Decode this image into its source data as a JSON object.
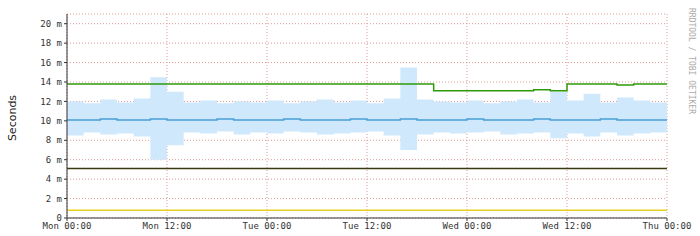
{
  "chart_data": {
    "type": "line",
    "y_label": "Seconds",
    "watermark": "RRDTOOL / TOBI OETIKER",
    "grid": true,
    "x": [
      0,
      2,
      4,
      6,
      8,
      10,
      12,
      14,
      16,
      18,
      20,
      22,
      24,
      26,
      28,
      30,
      32,
      34,
      36,
      38,
      40,
      42,
      44,
      46,
      48,
      50,
      52,
      54,
      56,
      58,
      60,
      62,
      64,
      66,
      68,
      70,
      72
    ],
    "xlim": [
      0,
      72
    ],
    "xticks": [
      {
        "value": 0,
        "label": "Mon 00:00"
      },
      {
        "value": 12,
        "label": "Mon 12:00"
      },
      {
        "value": 24,
        "label": "Tue 00:00"
      },
      {
        "value": 36,
        "label": "Tue 12:00"
      },
      {
        "value": 48,
        "label": "Wed 00:00"
      },
      {
        "value": 60,
        "label": "Wed 12:00"
      },
      {
        "value": 72,
        "label": "Thu 00:00"
      }
    ],
    "ylim": [
      0,
      0.021
    ],
    "yticks": [
      0,
      {
        "value": 0.002,
        "label": "2 m"
      },
      {
        "value": 0.004,
        "label": "4 m"
      },
      {
        "value": 0.006,
        "label": "6 m"
      },
      {
        "value": 0.008,
        "label": "8 m"
      },
      {
        "value": 0.01,
        "label": "10 m"
      },
      {
        "value": 0.012,
        "label": "12 m"
      },
      {
        "value": 0.014,
        "label": "14 m"
      },
      {
        "value": 0.016,
        "label": "16 m"
      },
      {
        "value": 0.018,
        "label": "18 m"
      },
      {
        "value": 0.02,
        "label": "20 m"
      }
    ],
    "series": [
      {
        "type": "range",
        "color": "#cfe8fb",
        "values": [
          [
            0.0085,
            0.012
          ],
          [
            0.0088,
            0.0118
          ],
          [
            0.0086,
            0.0122
          ],
          [
            0.0087,
            0.0119
          ],
          [
            0.0084,
            0.0123
          ],
          [
            0.006,
            0.0145
          ],
          [
            0.0075,
            0.013
          ],
          [
            0.0088,
            0.0119
          ],
          [
            0.0087,
            0.0121
          ],
          [
            0.0089,
            0.0118
          ],
          [
            0.0086,
            0.012
          ],
          [
            0.0088,
            0.0119
          ],
          [
            0.0087,
            0.0121
          ],
          [
            0.0089,
            0.0118
          ],
          [
            0.0088,
            0.012
          ],
          [
            0.0086,
            0.0122
          ],
          [
            0.0087,
            0.0119
          ],
          [
            0.0088,
            0.0121
          ],
          [
            0.0089,
            0.0118
          ],
          [
            0.0085,
            0.0123
          ],
          [
            0.007,
            0.0155
          ],
          [
            0.0086,
            0.0122
          ],
          [
            0.0088,
            0.012
          ],
          [
            0.0087,
            0.0119
          ],
          [
            0.0088,
            0.0121
          ],
          [
            0.0089,
            0.0118
          ],
          [
            0.0086,
            0.012
          ],
          [
            0.0087,
            0.0122
          ],
          [
            0.0088,
            0.0119
          ],
          [
            0.0082,
            0.013
          ],
          [
            0.0087,
            0.0121
          ],
          [
            0.0084,
            0.0128
          ],
          [
            0.0088,
            0.0119
          ],
          [
            0.0085,
            0.0124
          ],
          [
            0.0087,
            0.0121
          ],
          [
            0.0088,
            0.0119
          ],
          [
            0.0087,
            0.012
          ]
        ]
      },
      {
        "color": "#2e9a0a",
        "values": [
          0.0138,
          0.0138,
          0.0138,
          0.0138,
          0.0138,
          0.0138,
          0.0138,
          0.0138,
          0.0138,
          0.0138,
          0.0138,
          0.0138,
          0.0138,
          0.0138,
          0.0138,
          0.0138,
          0.0138,
          0.0138,
          0.0138,
          0.0138,
          0.0138,
          0.0138,
          0.0131,
          0.0131,
          0.0131,
          0.0131,
          0.0131,
          0.0131,
          0.0132,
          0.0131,
          0.0138,
          0.0138,
          0.0138,
          0.0137,
          0.0138,
          0.0138,
          0.0138
        ]
      },
      {
        "color": "#4a9fd8",
        "values": [
          0.0101,
          0.0101,
          0.0102,
          0.0101,
          0.0101,
          0.0102,
          0.0101,
          0.0101,
          0.0101,
          0.0102,
          0.0101,
          0.0101,
          0.0101,
          0.0102,
          0.0101,
          0.0101,
          0.0101,
          0.0102,
          0.0101,
          0.0101,
          0.0102,
          0.0101,
          0.0101,
          0.0101,
          0.0102,
          0.0101,
          0.0101,
          0.0101,
          0.0102,
          0.0101,
          0.0101,
          0.0101,
          0.0102,
          0.0101,
          0.0101,
          0.0101,
          0.0101
        ]
      },
      {
        "color": "#3a3a10",
        "values": [
          0.0051,
          0.0051,
          0.0051,
          0.0051,
          0.0051,
          0.0051,
          0.0051,
          0.0051,
          0.0051,
          0.0051,
          0.0051,
          0.0051,
          0.0051,
          0.0051,
          0.0051,
          0.0051,
          0.0051,
          0.0051,
          0.0051,
          0.0051,
          0.0051,
          0.0051,
          0.0051,
          0.0051,
          0.0051,
          0.0051,
          0.0051,
          0.0051,
          0.0051,
          0.0051,
          0.0051,
          0.0051,
          0.0051,
          0.0051,
          0.0051,
          0.0051,
          0.0051
        ]
      },
      {
        "color": "#e6d21e",
        "values": [
          0.0008,
          0.0008,
          0.0008,
          0.0008,
          0.0008,
          0.0008,
          0.0008,
          0.0008,
          0.0008,
          0.0008,
          0.0008,
          0.0008,
          0.0008,
          0.0008,
          0.0008,
          0.0008,
          0.0008,
          0.0008,
          0.0008,
          0.0008,
          0.0008,
          0.0008,
          0.0008,
          0.0008,
          0.0008,
          0.0008,
          0.0008,
          0.0008,
          0.0008,
          0.0008,
          0.0008,
          0.0008,
          0.0008,
          0.0008,
          0.0008,
          0.0008,
          0.0008
        ]
      }
    ]
  }
}
